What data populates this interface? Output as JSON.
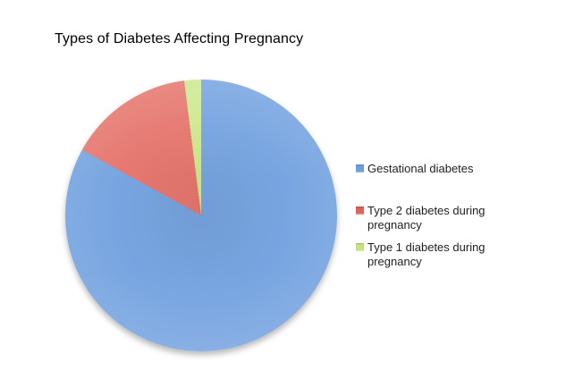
{
  "title": "Types of Diabetes Affecting Pregnancy",
  "chart_data": {
    "type": "pie",
    "title": "Types of Diabetes Affecting Pregnancy",
    "labels": [
      "Gestational diabetes",
      "Type 2 diabetes during pregnancy",
      "Type 1 diabetes during pregnancy"
    ],
    "values": [
      83,
      15,
      2
    ],
    "values_estimated_from_slice_angles": true,
    "slice_colors": [
      "#78A5E1",
      "#E6786F",
      "#D0E992"
    ],
    "legend_marker_colors": [
      "#6D9EDB",
      "#D9655E",
      "#C3E383"
    ],
    "legend_position": "right",
    "start_angle_deg": 0,
    "direction": "clockwise",
    "background": "#FFFFFF",
    "data_labels_shown": false
  }
}
